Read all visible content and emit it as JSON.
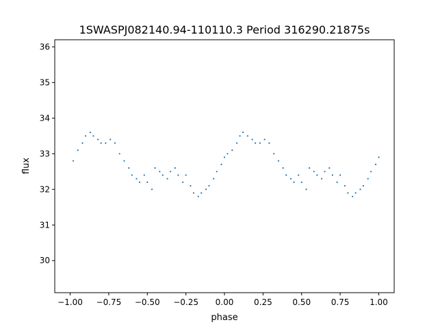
{
  "chart_data": {
    "type": "scatter",
    "title": "1SWASPJ082140.94-110110.3 Period 316290.21875s",
    "xlabel": "phase",
    "ylabel": "flux",
    "xlim": [
      -1.1,
      1.1
    ],
    "ylim": [
      29.1,
      36.2
    ],
    "x_ticks": [
      -1.0,
      -0.75,
      -0.5,
      -0.25,
      0.0,
      0.25,
      0.5,
      0.75,
      1.0
    ],
    "x_tick_labels": [
      "−1.00",
      "−0.75",
      "−0.50",
      "−0.25",
      "0.00",
      "0.25",
      "0.50",
      "0.75",
      "1.00"
    ],
    "y_ticks": [
      30,
      31,
      32,
      33,
      34,
      35,
      36
    ],
    "y_tick_labels": [
      "30",
      "31",
      "32",
      "33",
      "34",
      "35",
      "36"
    ],
    "grid": false,
    "legend": "none",
    "marker_color": "#1f77b4",
    "series": [
      {
        "points": [
          [
            -0.98,
            32.8
          ],
          [
            -0.95,
            33.1
          ],
          [
            -0.92,
            33.3
          ],
          [
            -0.9,
            33.5
          ],
          [
            -0.87,
            33.6
          ],
          [
            -0.85,
            33.5
          ],
          [
            -0.82,
            33.4
          ],
          [
            -0.8,
            33.3
          ],
          [
            -0.77,
            33.3
          ],
          [
            -0.74,
            33.4
          ],
          [
            -0.71,
            33.3
          ],
          [
            -0.68,
            33.0
          ],
          [
            -0.65,
            32.8
          ],
          [
            -0.62,
            32.6
          ],
          [
            -0.6,
            32.4
          ],
          [
            -0.57,
            32.3
          ],
          [
            -0.55,
            32.2
          ],
          [
            -0.52,
            32.4
          ],
          [
            -0.5,
            32.2
          ],
          [
            -0.47,
            32.0
          ],
          [
            -0.45,
            32.6
          ],
          [
            -0.42,
            32.5
          ],
          [
            -0.4,
            32.4
          ],
          [
            -0.37,
            32.3
          ],
          [
            -0.35,
            32.5
          ],
          [
            -0.32,
            32.6
          ],
          [
            -0.3,
            32.4
          ],
          [
            -0.27,
            32.2
          ],
          [
            -0.25,
            32.4
          ],
          [
            -0.22,
            32.1
          ],
          [
            -0.2,
            31.9
          ],
          [
            -0.17,
            31.8
          ],
          [
            -0.15,
            31.9
          ],
          [
            -0.12,
            32.0
          ],
          [
            -0.1,
            32.1
          ],
          [
            -0.07,
            32.3
          ],
          [
            -0.05,
            32.5
          ],
          [
            -0.02,
            32.7
          ],
          [
            0.0,
            32.9
          ],
          [
            0.02,
            33.0
          ],
          [
            0.05,
            33.1
          ],
          [
            0.08,
            33.3
          ],
          [
            0.1,
            33.5
          ],
          [
            0.12,
            33.6
          ],
          [
            0.15,
            33.5
          ],
          [
            0.18,
            33.4
          ],
          [
            0.2,
            33.3
          ],
          [
            0.23,
            33.3
          ],
          [
            0.26,
            33.4
          ],
          [
            0.29,
            33.3
          ],
          [
            0.32,
            33.0
          ],
          [
            0.35,
            32.8
          ],
          [
            0.38,
            32.6
          ],
          [
            0.4,
            32.4
          ],
          [
            0.43,
            32.3
          ],
          [
            0.45,
            32.2
          ],
          [
            0.48,
            32.4
          ],
          [
            0.5,
            32.2
          ],
          [
            0.53,
            32.0
          ],
          [
            0.55,
            32.6
          ],
          [
            0.58,
            32.5
          ],
          [
            0.6,
            32.4
          ],
          [
            0.63,
            32.3
          ],
          [
            0.65,
            32.5
          ],
          [
            0.68,
            32.6
          ],
          [
            0.7,
            32.4
          ],
          [
            0.73,
            32.2
          ],
          [
            0.75,
            32.4
          ],
          [
            0.78,
            32.1
          ],
          [
            0.8,
            31.9
          ],
          [
            0.83,
            31.8
          ],
          [
            0.85,
            31.9
          ],
          [
            0.88,
            32.0
          ],
          [
            0.9,
            32.1
          ],
          [
            0.93,
            32.3
          ],
          [
            0.95,
            32.5
          ],
          [
            0.98,
            32.7
          ],
          [
            1.0,
            32.9
          ]
        ]
      }
    ]
  }
}
